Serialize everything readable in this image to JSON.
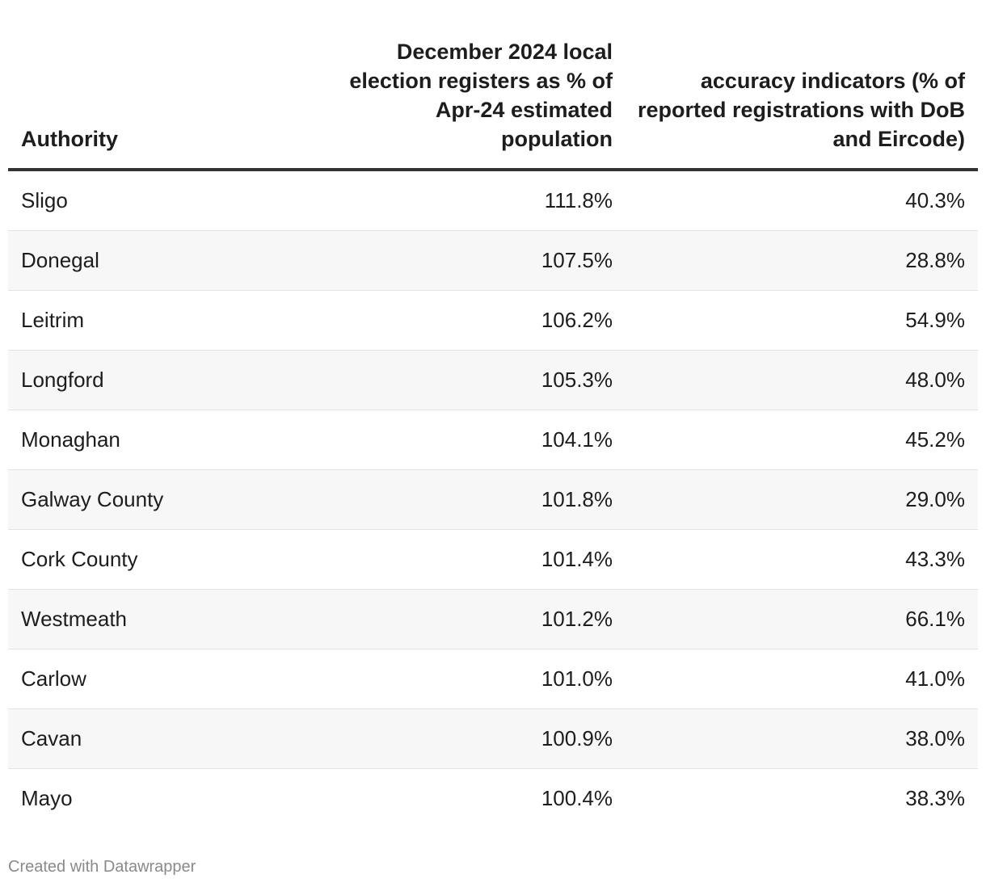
{
  "chart_data": {
    "type": "table",
    "columns": [
      "Authority",
      "December 2024 local election registers as % of Apr-24 estimated population",
      "accuracy indicators (% of reported registrations with DoB and Eircode)"
    ],
    "rows": [
      {
        "authority": "Sligo",
        "register_pct": "111.8%",
        "accuracy_pct": "40.3%"
      },
      {
        "authority": "Donegal",
        "register_pct": "107.5%",
        "accuracy_pct": "28.8%"
      },
      {
        "authority": "Leitrim",
        "register_pct": "106.2%",
        "accuracy_pct": "54.9%"
      },
      {
        "authority": "Longford",
        "register_pct": "105.3%",
        "accuracy_pct": "48.0%"
      },
      {
        "authority": "Monaghan",
        "register_pct": "104.1%",
        "accuracy_pct": "45.2%"
      },
      {
        "authority": "Galway County",
        "register_pct": "101.8%",
        "accuracy_pct": "29.0%"
      },
      {
        "authority": "Cork County",
        "register_pct": "101.4%",
        "accuracy_pct": "43.3%"
      },
      {
        "authority": "Westmeath",
        "register_pct": "101.2%",
        "accuracy_pct": "66.1%"
      },
      {
        "authority": "Carlow",
        "register_pct": "101.0%",
        "accuracy_pct": "41.0%"
      },
      {
        "authority": "Cavan",
        "register_pct": "100.9%",
        "accuracy_pct": "38.0%"
      },
      {
        "authority": "Mayo",
        "register_pct": "100.4%",
        "accuracy_pct": "38.3%"
      }
    ]
  },
  "footer": {
    "credit": "Created with Datawrapper"
  }
}
